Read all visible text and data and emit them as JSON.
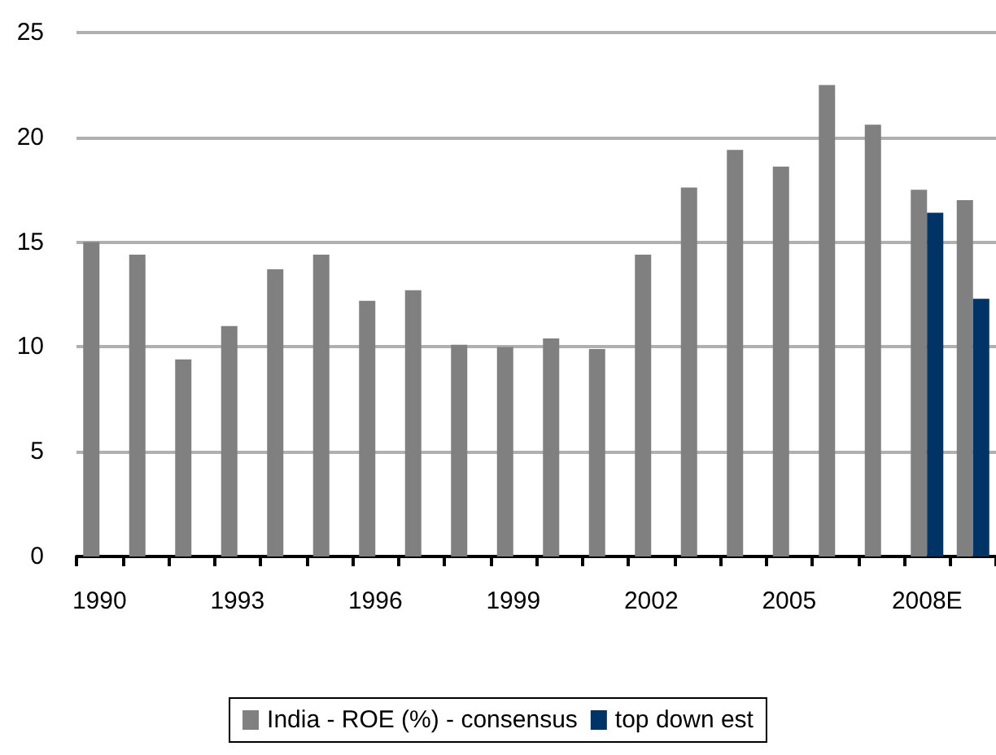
{
  "chart_data": {
    "type": "bar",
    "categories": [
      "1990",
      null,
      null,
      "1993",
      null,
      null,
      "1996",
      null,
      null,
      "1999",
      null,
      null,
      "2002",
      null,
      null,
      "2005",
      null,
      null,
      "2008E",
      null
    ],
    "series": [
      {
        "name": "India - ROE (%) - consensus",
        "color": "#808080",
        "values": [
          15.0,
          14.4,
          9.4,
          11.0,
          13.7,
          14.4,
          12.2,
          12.7,
          10.1,
          10.0,
          10.4,
          9.9,
          14.4,
          17.6,
          19.4,
          18.6,
          22.5,
          20.6,
          17.5,
          17.0
        ]
      },
      {
        "name": "top down est",
        "color": "#003366",
        "values": [
          null,
          null,
          null,
          null,
          null,
          null,
          null,
          null,
          null,
          null,
          null,
          null,
          null,
          null,
          null,
          null,
          null,
          null,
          16.4,
          12.3
        ]
      }
    ],
    "ylim": [
      0,
      25
    ],
    "yticks": [
      0,
      5,
      10,
      15,
      20,
      25
    ],
    "grid": "y",
    "legend": "bottom"
  }
}
